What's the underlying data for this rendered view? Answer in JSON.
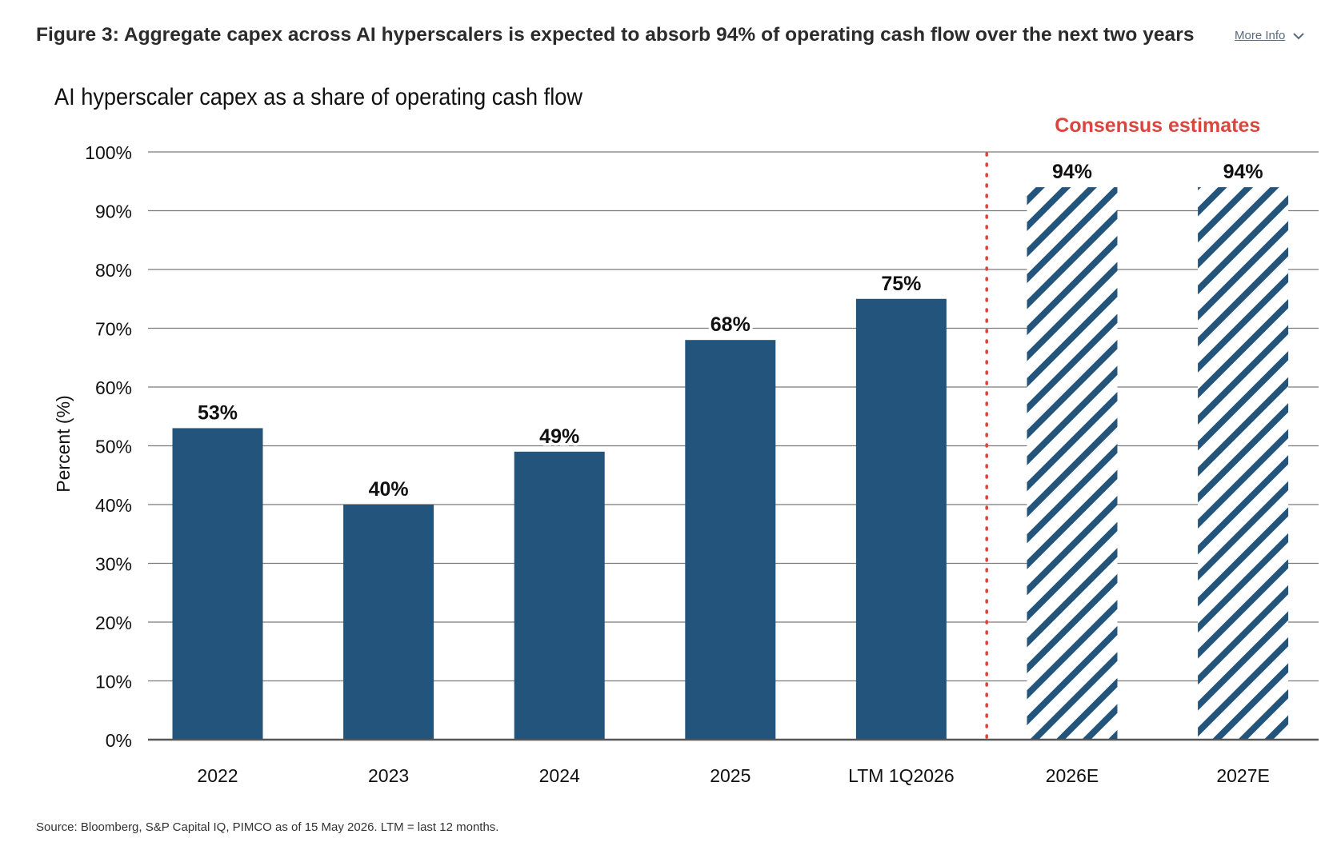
{
  "header": {
    "figure_title": "Figure 3: Aggregate capex across AI hyperscalers is expected to absorb 94% of operating cash flow over the next two years",
    "more_info_label": "More Info",
    "more_info_icon": "chevron-down-icon"
  },
  "chart_data": {
    "type": "bar",
    "title": "AI hyperscaler capex as a share of operating cash flow",
    "xlabel": "",
    "ylabel": "Percent (%)",
    "ylim": [
      0,
      100
    ],
    "yticks": [
      0,
      10,
      20,
      30,
      40,
      50,
      60,
      70,
      80,
      90,
      100
    ],
    "ytick_labels": [
      "0%",
      "10%",
      "20%",
      "30%",
      "40%",
      "50%",
      "60%",
      "70%",
      "80%",
      "90%",
      "100%"
    ],
    "categories": [
      "2022",
      "2023",
      "2024",
      "2025",
      "LTM 1Q2026",
      "2026E",
      "2027E"
    ],
    "values": [
      53,
      40,
      49,
      68,
      75,
      94,
      94
    ],
    "data_labels": [
      "53%",
      "40%",
      "49%",
      "68%",
      "75%",
      "94%",
      "94%"
    ],
    "estimated": [
      false,
      false,
      false,
      false,
      false,
      true,
      true
    ],
    "annotation": "Consensus estimates",
    "grid": true,
    "colors": {
      "bar": "#23547b",
      "hatch": "#23547b",
      "annotation": "#d9453f",
      "divider": "#d9453f",
      "grid": "#7a7a7a",
      "axis": "#555555"
    }
  },
  "footer": {
    "source": "Source: Bloomberg, S&P Capital IQ, PIMCO as of 15 May 2026. LTM = last 12 months."
  }
}
